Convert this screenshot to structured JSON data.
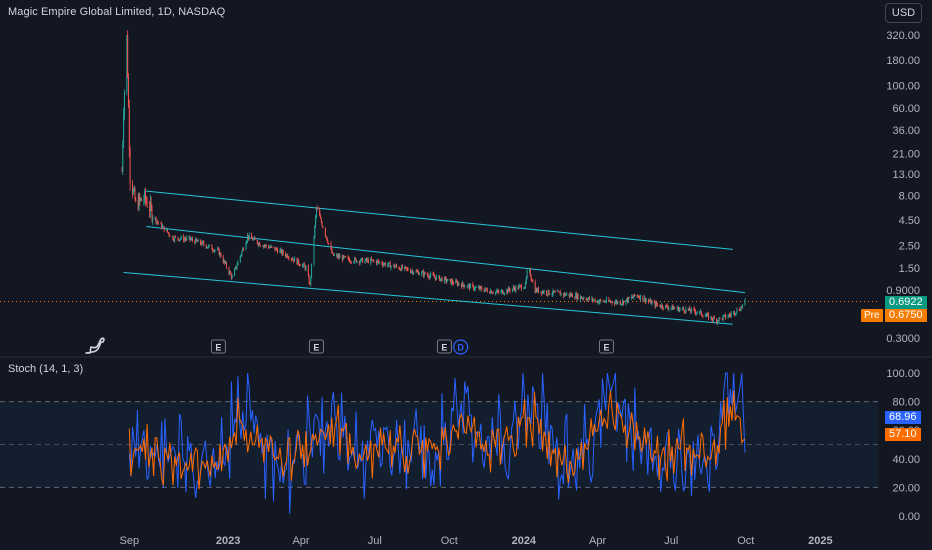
{
  "header": {
    "title": "Magic Empire Global Limited, 1D, NASDAQ",
    "currency": "USD"
  },
  "price_axis": {
    "ticks": [
      "320.00",
      "180.00",
      "100.00",
      "60.00",
      "36.00",
      "21.00",
      "13.00",
      "8.00",
      "4.50",
      "2.50",
      "1.50",
      "0.9000",
      "0.5000",
      "0.3000"
    ]
  },
  "price_tags": {
    "last": "0.6922",
    "last_color": "#089981",
    "pre_label": "Pre",
    "pre_value": "0.6750",
    "pre_color": "#f57c00"
  },
  "stoch": {
    "label": "Stoch (14, 1, 3)",
    "ticks": [
      "100.00",
      "80.00",
      "60.00",
      "40.00",
      "20.00",
      "0.00"
    ],
    "k_value": "68.96",
    "d_value": "57.10",
    "k_color": "#2962ff",
    "d_color": "#ff6d00"
  },
  "time_axis": {
    "labels": [
      "Sep",
      "2023",
      "Apr",
      "Jul",
      "Oct",
      "2024",
      "Apr",
      "Jul",
      "Oct",
      "2025"
    ]
  },
  "events": [
    {
      "type": "earnings",
      "label": "E"
    },
    {
      "type": "earnings",
      "label": "E"
    },
    {
      "type": "earnings",
      "label": "E"
    },
    {
      "type": "dividend",
      "label": "D"
    },
    {
      "type": "earnings",
      "label": "E"
    }
  ],
  "colors": {
    "background": "#131722",
    "up": "#26a69a",
    "down": "#ef5350",
    "channel": "#26c6da",
    "stoch_band": "#131e2e"
  },
  "chart_data": [
    {
      "type": "candlestick",
      "scale": "log",
      "x_start": "2022-08-23",
      "x_end": "2024-09-30",
      "ylim": [
        0.26,
        360
      ],
      "series": [
        {
          "kind": "close",
          "x": [
            "2022-08-23",
            "2022-08-25",
            "2022-08-29",
            "2022-09-02",
            "2022-09-09",
            "2022-09-20",
            "2022-10-04",
            "2022-10-25",
            "2022-11-15",
            "2022-12-01",
            "2022-12-20",
            "2023-01-06",
            "2023-01-25",
            "2023-02-10",
            "2023-03-01",
            "2023-03-20",
            "2023-04-07",
            "2023-04-12",
            "2023-04-20",
            "2023-05-10",
            "2023-06-01",
            "2023-07-01",
            "2023-08-01",
            "2023-09-01",
            "2023-10-01",
            "2023-11-01",
            "2023-12-01",
            "2024-01-03",
            "2024-01-06",
            "2024-01-15",
            "2024-02-01",
            "2024-03-01",
            "2024-04-01",
            "2024-05-01",
            "2024-05-20",
            "2024-06-10",
            "2024-07-01",
            "2024-08-01",
            "2024-08-25",
            "2024-09-10",
            "2024-09-25",
            "2024-09-30"
          ],
          "y": [
            14,
            60,
            300,
            12,
            6.5,
            7.5,
            4.5,
            3.0,
            2.9,
            2.6,
            2.2,
            1.2,
            3.1,
            2.6,
            2.3,
            1.9,
            1.5,
            1.0,
            6.0,
            2.0,
            1.8,
            1.75,
            1.5,
            1.3,
            1.1,
            0.95,
            0.85,
            1.0,
            1.55,
            0.9,
            0.85,
            0.8,
            0.7,
            0.68,
            0.8,
            0.65,
            0.6,
            0.55,
            0.45,
            0.5,
            0.6,
            0.69
          ]
        }
      ],
      "channel_lines": [
        {
          "x": [
            "2022-09-22",
            "2024-09-15"
          ],
          "y": [
            8.8,
            2.3
          ]
        },
        {
          "x": [
            "2022-09-22",
            "2024-09-30"
          ],
          "y": [
            3.9,
            0.85
          ]
        },
        {
          "x": [
            "2022-08-25",
            "2024-09-15"
          ],
          "y": [
            1.35,
            0.41
          ]
        }
      ],
      "last_price": 0.6922
    },
    {
      "type": "line",
      "title": "Stoch (14, 1, 3)",
      "ylim": [
        0,
        100
      ],
      "bands": [
        20,
        50,
        80
      ],
      "series": [
        {
          "name": "%K",
          "x": [
            "2022-09",
            "2022-10",
            "2022-11",
            "2022-12",
            "2023-01",
            "2023-02",
            "2023-03",
            "2023-04",
            "2023-05",
            "2023-06",
            "2023-07",
            "2023-08",
            "2023-09",
            "2023-10",
            "2023-11",
            "2023-12",
            "2024-01",
            "2024-02",
            "2024-03",
            "2024-04",
            "2024-05",
            "2024-06",
            "2024-07",
            "2024-08",
            "2024-09",
            "2024-09-30"
          ],
          "y": [
            55,
            40,
            35,
            25,
            78,
            45,
            30,
            60,
            70,
            35,
            55,
            40,
            50,
            80,
            45,
            60,
            82,
            30,
            45,
            95,
            60,
            40,
            50,
            35,
            95,
            69
          ]
        },
        {
          "name": "%D",
          "x": [
            "2022-09",
            "2022-10",
            "2022-11",
            "2022-12",
            "2023-01",
            "2023-02",
            "2023-03",
            "2023-04",
            "2023-05",
            "2023-06",
            "2023-07",
            "2023-08",
            "2023-09",
            "2023-10",
            "2023-11",
            "2023-12",
            "2024-01",
            "2024-02",
            "2024-03",
            "2024-04",
            "2024-05",
            "2024-06",
            "2024-07",
            "2024-08",
            "2024-09",
            "2024-09-30"
          ],
          "y": [
            45,
            42,
            32,
            30,
            65,
            48,
            35,
            50,
            62,
            40,
            50,
            42,
            48,
            72,
            48,
            55,
            70,
            35,
            45,
            75,
            58,
            42,
            48,
            38,
            80,
            57
          ]
        }
      ]
    }
  ]
}
